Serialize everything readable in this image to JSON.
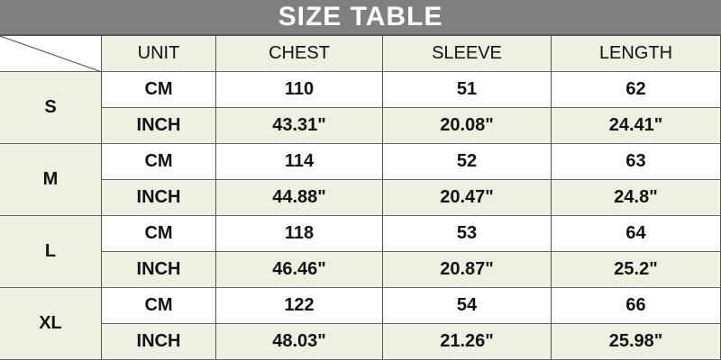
{
  "title": "SIZE TABLE",
  "headers": [
    "UNIT",
    "CHEST",
    "SLEEVE",
    "LENGTH"
  ],
  "colors": {
    "title_bg": "#808080",
    "cell_green": "#eef0e2"
  },
  "rows": [
    {
      "size": "S",
      "cm": {
        "unit": "CM",
        "chest": "110",
        "sleeve": "51",
        "length": "62"
      },
      "inch": {
        "unit": "INCH",
        "chest": "43.31\"",
        "sleeve": "20.08\"",
        "length": "24.41\""
      }
    },
    {
      "size": "M",
      "cm": {
        "unit": "CM",
        "chest": "114",
        "sleeve": "52",
        "length": "63"
      },
      "inch": {
        "unit": "INCH",
        "chest": "44.88\"",
        "sleeve": "20.47\"",
        "length": "24.8\""
      }
    },
    {
      "size": "L",
      "cm": {
        "unit": "CM",
        "chest": "118",
        "sleeve": "53",
        "length": "64"
      },
      "inch": {
        "unit": "INCH",
        "chest": "46.46\"",
        "sleeve": "20.87\"",
        "length": "25.2\""
      }
    },
    {
      "size": "XL",
      "cm": {
        "unit": "CM",
        "chest": "122",
        "sleeve": "54",
        "length": "66"
      },
      "inch": {
        "unit": "INCH",
        "chest": "48.03\"",
        "sleeve": "21.26\"",
        "length": "25.98\""
      }
    }
  ]
}
